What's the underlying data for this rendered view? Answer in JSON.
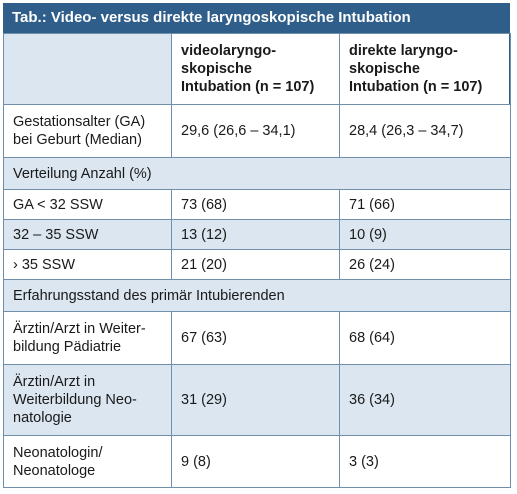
{
  "title": "Tab.: Video- versus direkte laryngoskopische Intubation",
  "columns": [
    "",
    "videolaryngo-\nskopische\nIntubation (n = 107)",
    "direkte laryngo-\nskopische\nIntubation (n = 107)"
  ],
  "column_lines": {
    "video": [
      "videolaryngo-",
      "skopische",
      "Intubation (n = 107)"
    ],
    "direct": [
      "direkte laryngo-",
      "skopische",
      "Intubation (n = 107)"
    ]
  },
  "rows": {
    "ga": {
      "label_lines": [
        "Gestationsalter (GA)",
        "bei Geburt (Median)"
      ],
      "video": "29,6 (26,6 – 34,1)",
      "direct": "28,4 (26,3 – 34,7)"
    },
    "section_distribution": "Verteilung Anzahl (%)",
    "ga_lt32": {
      "label": "GA < 32 SSW",
      "video": "73 (68)",
      "direct": "71 (66)"
    },
    "ga_32_35": {
      "label": "32 – 35 SSW",
      "video": "13 (12)",
      "direct": "10 (9)"
    },
    "ga_gt35": {
      "label": "› 35 SSW",
      "video": "21 (20)",
      "direct": "26 (24)"
    },
    "section_experience": "Erfahrungsstand des primär Intubierenden",
    "exp_paed": {
      "label_lines": [
        "Ärztin/Arzt in Weiter-",
        "bildung Pädiatrie"
      ],
      "video": "67 (63)",
      "direct": "68 (64)"
    },
    "exp_neo": {
      "label_lines": [
        "Ärztin/Arzt in",
        "Weiterbildung Neo-",
        "natologie"
      ],
      "video": "31 (29)",
      "direct": "36 (34)"
    },
    "exp_neonatologist": {
      "label_lines": [
        "Neonatologin/",
        "Neonatologe"
      ],
      "video": "9 (8)",
      "direct": "3 (3)"
    }
  }
}
